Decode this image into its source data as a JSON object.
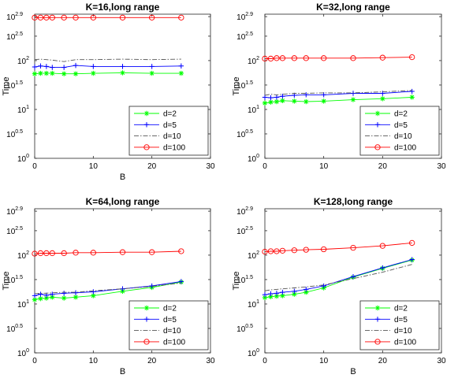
{
  "chart_data": [
    {
      "type": "line",
      "title": "K=16,long range",
      "xlabel": "B",
      "ylabel": "Time",
      "y_scale": "log10",
      "xlim": [
        0,
        30
      ],
      "ylim": [
        0,
        2.95
      ],
      "x_ticks": [
        "0",
        "10",
        "20",
        "30"
      ],
      "y_ticks": [
        "10",
        "10",
        "10",
        "10",
        "10",
        "10",
        "10"
      ],
      "y_tick_exponents": [
        "0",
        "0.5",
        "1",
        "1.5",
        "2",
        "2.5",
        "2.9"
      ],
      "legend_position": "lower-right",
      "x": [
        0,
        1,
        2,
        3,
        5,
        7,
        10,
        15,
        20,
        25
      ],
      "series": [
        {
          "name": "d=2",
          "color": "#00ff00",
          "marker": "asterisk",
          "line": "solid",
          "values": [
            1.73,
            1.74,
            1.74,
            1.74,
            1.73,
            1.73,
            1.74,
            1.75,
            1.74,
            1.74
          ]
        },
        {
          "name": "d=5",
          "color": "#0000ff",
          "marker": "plus",
          "line": "solid",
          "values": [
            1.87,
            1.89,
            1.88,
            1.86,
            1.86,
            1.9,
            1.88,
            1.88,
            1.88,
            1.89
          ]
        },
        {
          "name": "d=10",
          "color": "#555555",
          "marker": "none",
          "line": "dashdot",
          "values": [
            2.02,
            2.03,
            2.02,
            2.01,
            1.98,
            2.02,
            2.02,
            2.03,
            2.02,
            2.03
          ]
        },
        {
          "name": "d=100",
          "color": "#ff0000",
          "marker": "circle",
          "line": "solid",
          "values": [
            2.88,
            2.88,
            2.88,
            2.88,
            2.88,
            2.88,
            2.88,
            2.88,
            2.88,
            2.88
          ]
        }
      ]
    },
    {
      "type": "line",
      "title": "K=32,long range",
      "xlabel": "",
      "ylabel": "Time",
      "y_scale": "log10",
      "xlim": [
        0,
        30
      ],
      "ylim": [
        0,
        2.95
      ],
      "x_ticks": [
        "0",
        "10",
        "20",
        "30"
      ],
      "y_ticks": [
        "10",
        "10",
        "10",
        "10",
        "10",
        "10",
        "10"
      ],
      "y_tick_exponents": [
        "0",
        "0.5",
        "1",
        "1.5",
        "2",
        "2.5",
        "2.9"
      ],
      "legend_position": "lower-right",
      "x": [
        0,
        1,
        2,
        3,
        5,
        7,
        10,
        15,
        20,
        25
      ],
      "series": [
        {
          "name": "d=2",
          "color": "#00ff00",
          "marker": "asterisk",
          "line": "solid",
          "values": [
            1.13,
            1.15,
            1.16,
            1.18,
            1.17,
            1.16,
            1.17,
            1.2,
            1.22,
            1.25
          ]
        },
        {
          "name": "d=5",
          "color": "#0000ff",
          "marker": "plus",
          "line": "solid",
          "values": [
            1.25,
            1.24,
            1.25,
            1.27,
            1.29,
            1.3,
            1.3,
            1.33,
            1.33,
            1.37
          ]
        },
        {
          "name": "d=10",
          "color": "#555555",
          "marker": "none",
          "line": "dashdot",
          "values": [
            1.29,
            1.31,
            1.3,
            1.31,
            1.33,
            1.33,
            1.34,
            1.34,
            1.36,
            1.39
          ]
        },
        {
          "name": "d=100",
          "color": "#ff0000",
          "marker": "circle",
          "line": "solid",
          "values": [
            2.04,
            2.04,
            2.05,
            2.05,
            2.05,
            2.05,
            2.05,
            2.05,
            2.06,
            2.07
          ]
        }
      ]
    },
    {
      "type": "line",
      "title": "K=64,long range",
      "xlabel": "B",
      "ylabel": "Time",
      "y_scale": "log10",
      "xlim": [
        0,
        30
      ],
      "ylim": [
        0,
        2.95
      ],
      "x_ticks": [
        "0",
        "10",
        "20",
        "30"
      ],
      "y_ticks": [
        "10",
        "10",
        "10",
        "10",
        "10",
        "10",
        "10"
      ],
      "y_tick_exponents": [
        "0",
        "0.5",
        "1",
        "1.5",
        "2",
        "2.5",
        "2.9"
      ],
      "legend_position": "lower-right",
      "x": [
        0,
        1,
        2,
        3,
        5,
        7,
        10,
        15,
        20,
        25
      ],
      "series": [
        {
          "name": "d=2",
          "color": "#00ff00",
          "marker": "asterisk",
          "line": "solid",
          "values": [
            1.09,
            1.11,
            1.12,
            1.14,
            1.12,
            1.14,
            1.17,
            1.26,
            1.34,
            1.45
          ]
        },
        {
          "name": "d=5",
          "color": "#0000ff",
          "marker": "plus",
          "line": "solid",
          "values": [
            1.17,
            1.2,
            1.18,
            1.2,
            1.22,
            1.23,
            1.25,
            1.31,
            1.37,
            1.46
          ]
        },
        {
          "name": "d=10",
          "color": "#555555",
          "marker": "none",
          "line": "dashdot",
          "values": [
            1.21,
            1.22,
            1.22,
            1.23,
            1.24,
            1.24,
            1.27,
            1.31,
            1.36,
            1.43
          ]
        },
        {
          "name": "d=100",
          "color": "#ff0000",
          "marker": "circle",
          "line": "solid",
          "values": [
            2.03,
            2.04,
            2.04,
            2.04,
            2.04,
            2.05,
            2.05,
            2.06,
            2.06,
            2.08
          ]
        }
      ]
    },
    {
      "type": "line",
      "title": "K=128,long range",
      "xlabel": "B",
      "ylabel": "Time",
      "y_scale": "log10",
      "xlim": [
        0,
        30
      ],
      "ylim": [
        0,
        2.95
      ],
      "x_ticks": [
        "0",
        "10",
        "20",
        "30"
      ],
      "y_ticks": [
        "10",
        "10",
        "10",
        "10",
        "10",
        "10",
        "10"
      ],
      "y_tick_exponents": [
        "0",
        "0.5",
        "1",
        "1.5",
        "2",
        "2.5",
        "2.9"
      ],
      "legend_position": "lower-right",
      "x": [
        0,
        1,
        2,
        3,
        5,
        7,
        10,
        15,
        20,
        25
      ],
      "series": [
        {
          "name": "d=2",
          "color": "#00ff00",
          "marker": "asterisk",
          "line": "solid",
          "values": [
            1.13,
            1.15,
            1.16,
            1.17,
            1.2,
            1.24,
            1.33,
            1.55,
            1.73,
            1.9
          ]
        },
        {
          "name": "d=5",
          "color": "#0000ff",
          "marker": "plus",
          "line": "solid",
          "values": [
            1.19,
            1.21,
            1.22,
            1.24,
            1.26,
            1.3,
            1.37,
            1.56,
            1.74,
            1.91
          ]
        },
        {
          "name": "d=10",
          "color": "#555555",
          "marker": "none",
          "line": "dashdot",
          "values": [
            1.27,
            1.29,
            1.3,
            1.31,
            1.33,
            1.35,
            1.39,
            1.52,
            1.65,
            1.81
          ]
        },
        {
          "name": "d=100",
          "color": "#ff0000",
          "marker": "circle",
          "line": "solid",
          "values": [
            2.07,
            2.08,
            2.08,
            2.09,
            2.1,
            2.11,
            2.12,
            2.15,
            2.19,
            2.25
          ]
        }
      ]
    }
  ]
}
